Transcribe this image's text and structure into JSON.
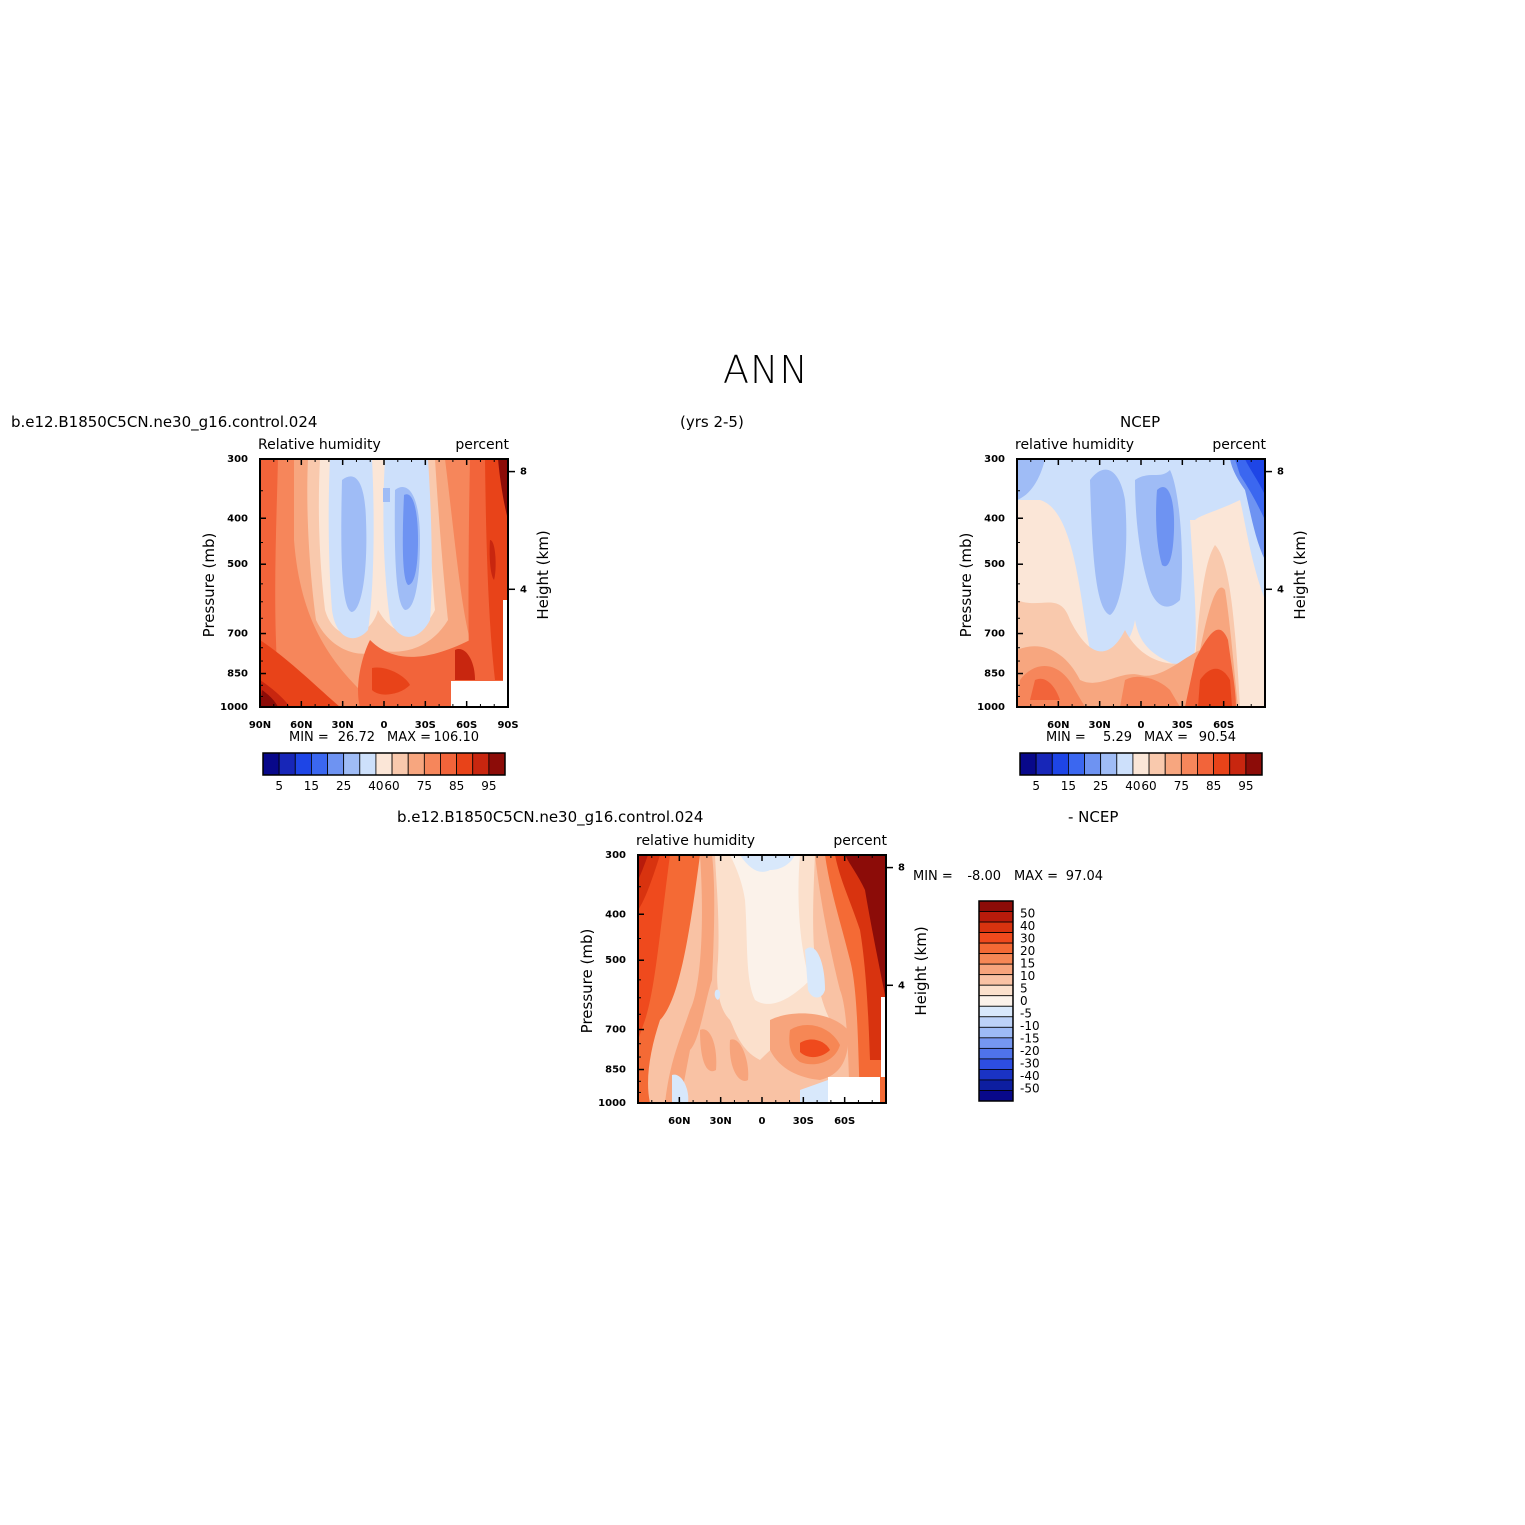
{
  "page": {
    "title": "ANN",
    "case_name": "b.e12.B1850C5CN.ne30_g16.control.024",
    "years": "(yrs 2-5)",
    "obs_name": "NCEP",
    "diff_case_name": "b.e12.B1850C5CN.ne30_g16.control.024",
    "diff_obs_name": "- NCEP"
  },
  "chart_data": [
    {
      "type": "heatmap",
      "panel": "model",
      "left_label": "Relative humidity",
      "right_label": "percent",
      "ylabel": "Pressure (mb)",
      "y2label": "Height (km)",
      "yticks": [
        "300",
        "400",
        "500",
        "700",
        "850",
        "1000"
      ],
      "y2ticks": [
        "8",
        "4"
      ],
      "xticks": [
        "90N",
        "60N",
        "30N",
        "0",
        "30S",
        "60S",
        "90S"
      ],
      "stats": {
        "min_label": "MIN =",
        "min": "26.72",
        "max_label": "MAX =",
        "max": "106.10"
      },
      "colorbar_labels": [
        "5",
        "15",
        "25",
        "40",
        "60",
        "75",
        "85",
        "95"
      ]
    },
    {
      "type": "heatmap",
      "panel": "obs",
      "left_label": "relative humidity",
      "right_label": "percent",
      "ylabel": "Pressure (mb)",
      "y2label": "Height (km)",
      "yticks": [
        "300",
        "400",
        "500",
        "700",
        "850",
        "1000"
      ],
      "y2ticks": [
        "8",
        "4"
      ],
      "xticks": [
        "60N",
        "30N",
        "0",
        "30S",
        "60S"
      ],
      "stats": {
        "min_label": "MIN =",
        "min": "5.29",
        "max_label": "MAX =",
        "max": "90.54"
      },
      "colorbar_labels": [
        "5",
        "15",
        "25",
        "40",
        "60",
        "75",
        "85",
        "95"
      ]
    },
    {
      "type": "heatmap",
      "panel": "difference",
      "left_label": "relative humidity",
      "right_label": "percent",
      "ylabel": "Pressure (mb)",
      "y2label": "Height (km)",
      "yticks": [
        "300",
        "400",
        "500",
        "700",
        "850",
        "1000"
      ],
      "y2ticks": [
        "8",
        "4"
      ],
      "xticks": [
        "60N",
        "30N",
        "0",
        "30S",
        "60S"
      ],
      "stats": {
        "min_label": "MIN =",
        "min": "-8.00",
        "max_label": "MAX =",
        "max": "97.04"
      },
      "colorbar_labels": [
        "50",
        "40",
        "30",
        "20",
        "15",
        "10",
        "5",
        "0",
        "-5",
        "-10",
        "-15",
        "-20",
        "-30",
        "-40",
        "-50"
      ]
    }
  ],
  "colors": {
    "abs_scale": [
      "#08088a",
      "#1726b8",
      "#1e45e6",
      "#3b67f0",
      "#6e93f2",
      "#9fbcf6",
      "#cde0fb",
      "#fbe6d7",
      "#f9c9ad",
      "#f7a67f",
      "#f6865b",
      "#f2643a",
      "#e84319",
      "#c8260f",
      "#8c0c08"
    ],
    "diff_scale": [
      "#8c0c08",
      "#b81b0b",
      "#d8330f",
      "#ef4a1d",
      "#f46a35",
      "#f68755",
      "#f7a47c",
      "#f9c2a4",
      "#fbe0cc",
      "#fbf2ea",
      "#d8e8fb",
      "#bcd2f8",
      "#9dbbf6",
      "#7597f1",
      "#4f73ea",
      "#2d4ee2",
      "#1a33c4",
      "#0d1ea0",
      "#08088a"
    ]
  }
}
